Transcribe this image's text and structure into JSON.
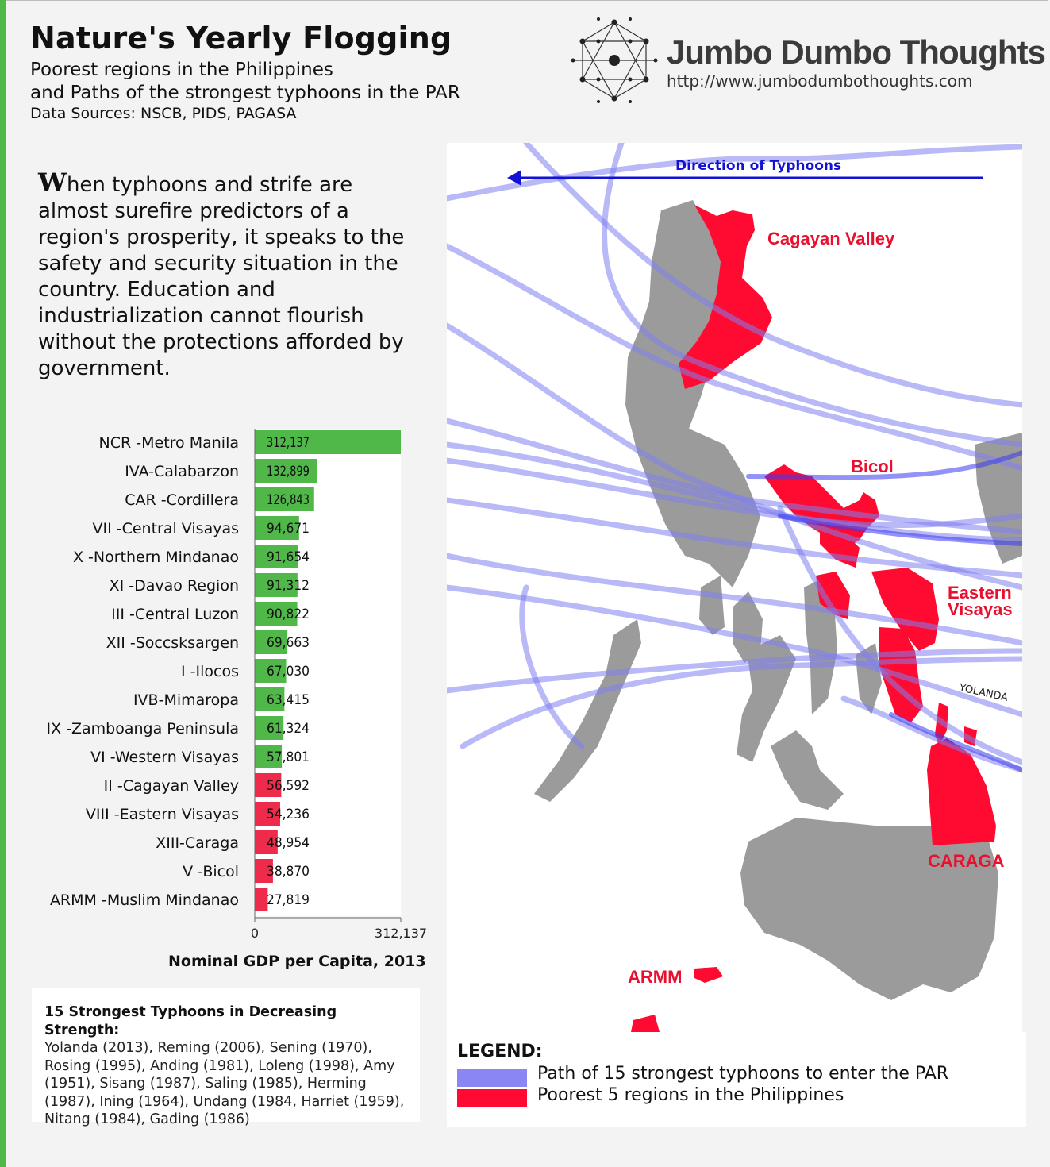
{
  "header": {
    "title": "Nature's Yearly Flogging",
    "subtitle_line1": "Poorest regions in the Philippines",
    "subtitle_line2": "and Paths of the strongest typhoons in the PAR",
    "sources": "Data Sources: NSCB, PIDS, PAGASA"
  },
  "brand": {
    "name": "Jumbo Dumbo Thoughts",
    "url": "http://www.jumbodumbothoughts.com"
  },
  "intro": {
    "dropcap": "W",
    "text": "hen typhoons and strife are almost surefire predictors of a region's prosperity, it speaks to the safety and security situation in the country. Education and industrialization cannot flourish without the protections afforded by government."
  },
  "chart_data": {
    "type": "bar",
    "orientation": "horizontal",
    "title": "Nominal GDP per Capita, 2013",
    "categories": [
      "NCR -Metro Manila",
      "IVA-Calabarzon",
      "CAR -Cordillera",
      "VII -Central Visayas",
      "X -Northern Mindanao",
      "XI -Davao Region",
      "III -Central Luzon",
      "XII -Soccsksargen",
      "I -Ilocos",
      "IVB-Mimaropa",
      "IX -Zamboanga Peninsula",
      "VI -Western Visayas",
      "II -Cagayan Valley",
      "VIII -Eastern Visayas",
      "XIII-Caraga",
      "V -Bicol",
      "ARMM -Muslim Mindanao"
    ],
    "values": [
      312137,
      132899,
      126843,
      94671,
      91654,
      91312,
      90822,
      69663,
      67030,
      63415,
      61324,
      57801,
      56592,
      54236,
      48954,
      38870,
      27819
    ],
    "value_labels": [
      "312,137",
      "132,899",
      "126,843",
      "94,671",
      "91,654",
      "91,312",
      "90,822",
      "69,663",
      "67,030",
      "63,415",
      "61,324",
      "57,801",
      "56,592",
      "54,236",
      "48,954",
      "38,870",
      "27,819"
    ],
    "xlim": [
      0,
      312137
    ],
    "tick_labels": [
      "0",
      "312,137"
    ],
    "colors": [
      "#4fb848",
      "#4fb848",
      "#4fb848",
      "#4fb848",
      "#4fb848",
      "#4fb848",
      "#4fb848",
      "#4fb848",
      "#4fb848",
      "#4fb848",
      "#4fb848",
      "#4fb848",
      "#ee2b4b",
      "#ee2b4b",
      "#ee2b4b",
      "#ee2b4b",
      "#ee2b4b"
    ],
    "grid": false
  },
  "typhoons": {
    "heading": "15 Strongest Typhoons in Decreasing Strength:",
    "list": "Yolanda (2013), Reming (2006), Sening (1970), Rosing (1995), Anding (1981), Loleng (1998), Amy (1951), Sisang (1987), Saling (1985), Herming (1987), Ining (1964), Undang (1984, Harriet (1959), Nitang (1984), Gading (1986)"
  },
  "map": {
    "direction_label": "Direction of Typhoons",
    "labels": {
      "cagayan": "Cagayan Valley",
      "bicol": "Bicol",
      "eastern1": "Eastern",
      "eastern2": "Visayas",
      "caraga": "CARAGA",
      "armm": "ARMM",
      "yolanda": "YOLANDA"
    },
    "colors": {
      "land": "#9b9b9b",
      "poor": "#ff0b31",
      "path": "#7f7ff2",
      "arrow": "#1212d4"
    }
  },
  "legend": {
    "title": "LEGEND:",
    "path_label": "Path of 15 strongest typhoons to enter the PAR",
    "poor_label": "Poorest 5 regions in the Philippines",
    "path_color": "#8a86f4",
    "poor_color": "#ff0b31"
  }
}
